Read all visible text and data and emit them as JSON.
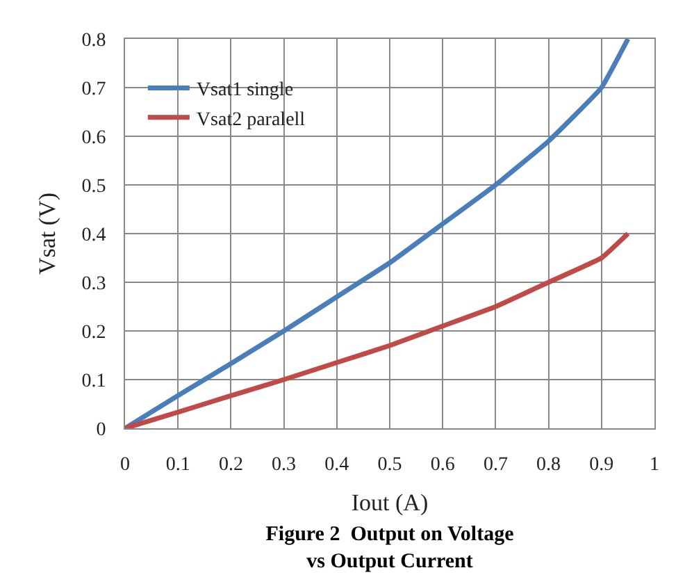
{
  "chart_data": {
    "type": "line",
    "title": "Figure 2  Output on Voltage\nvs Output Current",
    "xlabel": "Iout (A)",
    "ylabel": "Vsat (V)",
    "x": [
      0,
      0.1,
      0.2,
      0.3,
      0.4,
      0.5,
      0.6,
      0.7,
      0.8,
      0.9,
      0.95
    ],
    "series": [
      {
        "name": "Vsat1 single",
        "color": "#4a7ebb",
        "values": [
          0,
          0.067,
          0.133,
          0.2,
          0.27,
          0.34,
          0.42,
          0.5,
          0.59,
          0.7,
          0.8
        ]
      },
      {
        "name": "Vsat2 paralell",
        "color": "#be4b48",
        "values": [
          0,
          0.033,
          0.067,
          0.1,
          0.135,
          0.17,
          0.21,
          0.25,
          0.3,
          0.35,
          0.4
        ]
      }
    ],
    "xlim": [
      0,
      1
    ],
    "xticks": [
      0,
      0.1,
      0.2,
      0.3,
      0.4,
      0.5,
      0.6,
      0.7,
      0.8,
      0.9,
      1
    ],
    "ylim": [
      0,
      0.8
    ],
    "yticks": [
      0,
      0.1,
      0.2,
      0.3,
      0.4,
      0.5,
      0.6,
      0.7,
      0.8
    ],
    "grid": true,
    "legend": "top left",
    "marker": "none",
    "line_style": "solid"
  }
}
